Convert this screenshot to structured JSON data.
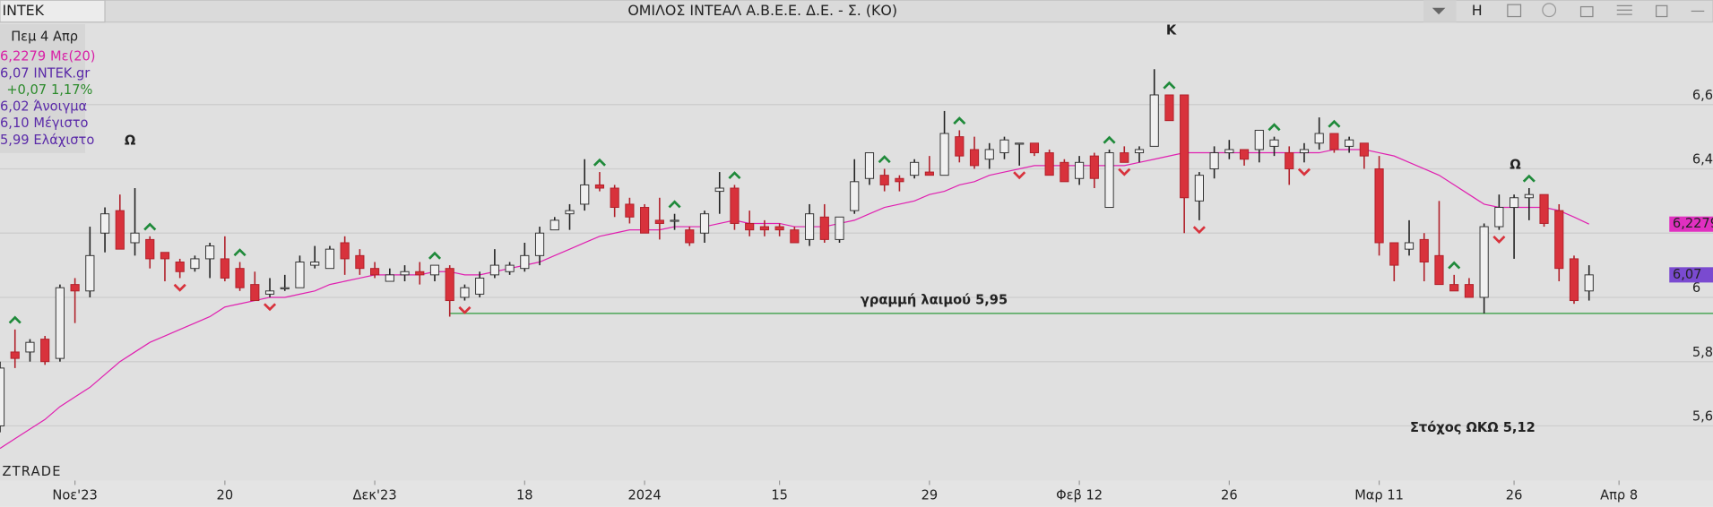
{
  "window": {
    "symbol": "INTEK",
    "title": "ΟΜΙΛΟΣ ΙΝΤΕΑΛ Α.Β.Ε.Ε. Δ.Ε. - Σ. (ΚΟ)",
    "button": "H"
  },
  "info": {
    "date": "Πεμ 4 Απρ",
    "lines": [
      {
        "value": "6,2279",
        "name": "Με(20)"
      },
      {
        "value": "6,07",
        "name": "INTEK.gr"
      },
      {
        "value": "+0,07",
        "name": "1,17%"
      },
      {
        "value": "6,02",
        "name": "Άνοιγμα"
      },
      {
        "value": "6,10",
        "name": "Μέγιστο"
      },
      {
        "value": "5,99",
        "name": "Ελάχιστο"
      }
    ]
  },
  "watermark": "ZTRADE",
  "chart_data": {
    "type": "candlestick",
    "open": [
      5.6,
      5.83,
      5.83,
      5.87,
      5.81,
      6.04,
      6.02,
      6.2,
      6.27,
      6.17,
      6.18,
      6.14,
      6.11,
      6.09,
      6.12,
      6.12,
      6.09,
      6.04,
      6.01,
      6.03,
      6.03,
      6.1,
      6.09,
      6.17,
      6.13,
      6.09,
      6.05,
      6.07,
      6.08,
      6.07,
      6.09,
      6.0,
      6.01,
      6.07,
      6.08,
      6.09,
      6.13,
      6.21,
      6.26,
      6.29,
      6.35,
      6.34,
      6.29,
      6.28,
      6.24,
      6.24,
      6.21,
      6.2,
      6.33,
      6.34,
      6.23,
      6.22,
      6.22,
      6.21,
      6.18,
      6.25,
      6.18,
      6.27,
      6.37,
      6.38,
      6.37,
      6.38,
      6.39,
      6.38,
      6.5,
      6.46,
      6.43,
      6.45,
      6.48,
      6.48,
      6.45,
      6.42,
      6.37,
      6.44,
      6.28,
      6.45,
      6.45,
      6.47,
      6.63,
      6.63,
      6.3,
      6.4,
      6.45,
      6.46,
      6.46,
      6.47,
      6.45,
      6.45,
      6.48,
      6.51,
      6.47,
      6.48,
      6.4,
      6.17,
      6.15,
      6.18,
      6.13,
      6.04,
      6.04,
      6.0,
      6.22,
      6.28,
      6.31,
      6.32,
      6.27,
      6.12,
      6.02
    ],
    "high": [
      5.8,
      5.9,
      5.87,
      5.88,
      6.04,
      6.06,
      6.22,
      6.28,
      6.32,
      6.34,
      6.19,
      6.14,
      6.12,
      6.13,
      6.17,
      6.19,
      6.11,
      6.08,
      6.06,
      6.07,
      6.13,
      6.16,
      6.16,
      6.19,
      6.15,
      6.11,
      6.09,
      6.1,
      6.11,
      6.1,
      6.1,
      6.04,
      6.08,
      6.15,
      6.11,
      6.17,
      6.22,
      6.25,
      6.29,
      6.43,
      6.39,
      6.35,
      6.31,
      6.29,
      6.31,
      6.26,
      6.22,
      6.27,
      6.39,
      6.35,
      6.27,
      6.24,
      6.23,
      6.22,
      6.29,
      6.29,
      6.25,
      6.43,
      6.45,
      6.4,
      6.38,
      6.43,
      6.44,
      6.58,
      6.52,
      6.5,
      6.48,
      6.5,
      6.48,
      6.48,
      6.46,
      6.43,
      6.44,
      6.45,
      6.46,
      6.47,
      6.47,
      6.71,
      6.63,
      6.63,
      6.39,
      6.47,
      6.49,
      6.46,
      6.52,
      6.5,
      6.47,
      6.48,
      6.56,
      6.51,
      6.5,
      6.48,
      6.44,
      6.17,
      6.24,
      6.2,
      6.3,
      6.07,
      6.06,
      6.23,
      6.32,
      6.32,
      6.34,
      6.32,
      6.29,
      6.13,
      6.1
    ],
    "low": [
      5.58,
      5.78,
      5.8,
      5.79,
      5.8,
      5.92,
      6.0,
      6.14,
      6.15,
      6.13,
      6.09,
      6.05,
      6.06,
      6.08,
      6.06,
      6.05,
      6.02,
      5.99,
      6.0,
      6.02,
      6.03,
      6.09,
      6.09,
      6.07,
      6.07,
      6.06,
      6.05,
      6.05,
      6.04,
      6.05,
      5.94,
      5.99,
      6.0,
      6.06,
      6.07,
      6.08,
      6.1,
      6.21,
      6.21,
      6.27,
      6.33,
      6.25,
      6.23,
      6.2,
      6.18,
      6.21,
      6.16,
      6.17,
      6.26,
      6.21,
      6.19,
      6.19,
      6.19,
      6.17,
      6.16,
      6.17,
      6.17,
      6.26,
      6.35,
      6.33,
      6.33,
      6.37,
      6.38,
      6.38,
      6.42,
      6.4,
      6.4,
      6.43,
      6.41,
      6.44,
      6.38,
      6.36,
      6.35,
      6.34,
      6.28,
      6.42,
      6.42,
      6.47,
      6.55,
      6.2,
      6.24,
      6.37,
      6.43,
      6.41,
      6.42,
      6.44,
      6.35,
      6.42,
      6.46,
      6.45,
      6.45,
      6.4,
      6.13,
      6.05,
      6.13,
      6.05,
      6.04,
      6.02,
      6.0,
      5.95,
      6.21,
      6.12,
      6.24,
      6.22,
      6.05,
      5.98,
      5.99
    ],
    "close": [
      5.78,
      5.81,
      5.86,
      5.8,
      6.03,
      6.02,
      6.13,
      6.26,
      6.15,
      6.2,
      6.12,
      6.12,
      6.08,
      6.12,
      6.16,
      6.06,
      6.03,
      5.99,
      6.02,
      6.03,
      6.11,
      6.11,
      6.15,
      6.12,
      6.09,
      6.07,
      6.07,
      6.08,
      6.07,
      6.1,
      5.99,
      6.03,
      6.06,
      6.1,
      6.1,
      6.13,
      6.2,
      6.24,
      6.27,
      6.35,
      6.34,
      6.28,
      6.25,
      6.2,
      6.23,
      6.24,
      6.17,
      6.26,
      6.34,
      6.23,
      6.21,
      6.21,
      6.21,
      6.17,
      6.26,
      6.18,
      6.25,
      6.36,
      6.45,
      6.35,
      6.36,
      6.42,
      6.38,
      6.51,
      6.44,
      6.41,
      6.46,
      6.49,
      6.48,
      6.45,
      6.38,
      6.36,
      6.42,
      6.37,
      6.45,
      6.42,
      6.46,
      6.63,
      6.55,
      6.31,
      6.38,
      6.45,
      6.46,
      6.43,
      6.52,
      6.49,
      6.4,
      6.46,
      6.51,
      6.46,
      6.49,
      6.44,
      6.17,
      6.1,
      6.17,
      6.11,
      6.04,
      6.02,
      6.0,
      6.22,
      6.28,
      6.31,
      6.32,
      6.23,
      6.09,
      5.99,
      6.07
    ],
    "ma": {
      "name": "Με(20)",
      "color": "#e020b0",
      "values": [
        5.53,
        5.56,
        5.59,
        5.62,
        5.66,
        5.69,
        5.72,
        5.76,
        5.8,
        5.83,
        5.86,
        5.88,
        5.9,
        5.92,
        5.94,
        5.97,
        5.98,
        5.99,
        6.0,
        6.0,
        6.01,
        6.02,
        6.04,
        6.05,
        6.06,
        6.07,
        6.07,
        6.07,
        6.07,
        6.08,
        6.08,
        6.07,
        6.07,
        6.08,
        6.09,
        6.1,
        6.11,
        6.13,
        6.15,
        6.17,
        6.19,
        6.2,
        6.21,
        6.21,
        6.21,
        6.22,
        6.22,
        6.22,
        6.23,
        6.24,
        6.23,
        6.23,
        6.23,
        6.22,
        6.22,
        6.22,
        6.23,
        6.24,
        6.26,
        6.28,
        6.29,
        6.3,
        6.32,
        6.33,
        6.35,
        6.36,
        6.38,
        6.39,
        6.4,
        6.41,
        6.41,
        6.41,
        6.41,
        6.41,
        6.41,
        6.41,
        6.42,
        6.43,
        6.44,
        6.45,
        6.45,
        6.45,
        6.45,
        6.45,
        6.45,
        6.45,
        6.45,
        6.45,
        6.45,
        6.46,
        6.46,
        6.46,
        6.45,
        6.44,
        6.42,
        6.4,
        6.38,
        6.35,
        6.32,
        6.29,
        6.28,
        6.28,
        6.28,
        6.28,
        6.27,
        6.25,
        6.2279
      ]
    },
    "up_color": "#f0f0f0",
    "down_color": "#d8323c",
    "up_markers": [
      1,
      10,
      16,
      29,
      40,
      45,
      49,
      59,
      64,
      74,
      78,
      85,
      89,
      97,
      102
    ],
    "down_markers": [
      12,
      18,
      31,
      68,
      75,
      80,
      87,
      100
    ],
    "neckline": {
      "value": 5.95,
      "start": 30,
      "label": "γραμμή λαιμού 5,95",
      "color": "#2e9a3a"
    },
    "annotations": [
      {
        "text": "Ω"
      },
      {
        "text": "K"
      },
      {
        "text": "Ω"
      },
      {
        "text": "Στόχος ΩΚΩ 5,12"
      }
    ],
    "xlim": [
      0,
      111.5
    ],
    "ylim": [
      5.44,
      6.85
    ],
    "xticks": [
      {
        "value": 5,
        "label": "Νοε'23"
      },
      {
        "value": 15,
        "label": "20"
      },
      {
        "value": 25,
        "label": "Δεκ'23"
      },
      {
        "value": 35,
        "label": "18"
      },
      {
        "value": 43,
        "label": "2024"
      },
      {
        "value": 52,
        "label": "15"
      },
      {
        "value": 62,
        "label": "29"
      },
      {
        "value": 72,
        "label": "Φεβ 12"
      },
      {
        "value": 82,
        "label": "26"
      },
      {
        "value": 92,
        "label": "Μαρ 11"
      },
      {
        "value": 101,
        "label": "26"
      },
      {
        "value": 108,
        "label": "Απρ 8"
      }
    ],
    "yticks": [
      {
        "value": 5.6,
        "label": "5,6"
      },
      {
        "value": 5.8,
        "label": "5,8"
      },
      6,
      {
        "value": 6.2,
        "label": "6,2"
      },
      {
        "value": 6.4,
        "label": "6,4"
      },
      {
        "value": 6.6,
        "label": "6,6"
      }
    ],
    "grid": true
  }
}
